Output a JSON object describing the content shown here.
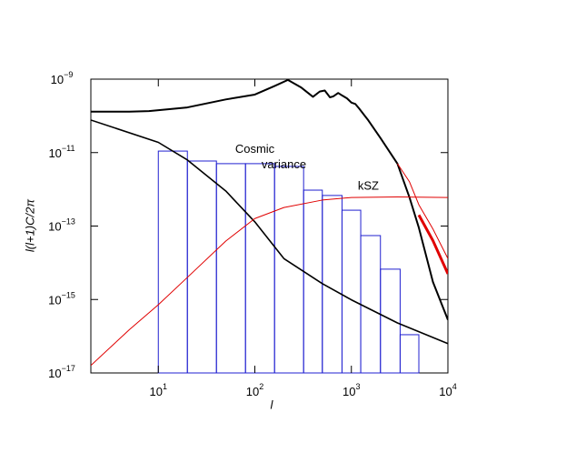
{
  "chart_data": {
    "type": "line",
    "xlabel": "l",
    "ylabel": "l(l+1)C/2π",
    "xlog": true,
    "ylog": true,
    "xlim": [
      2,
      10000
    ],
    "ylim": [
      1e-17,
      1e-09
    ],
    "xticks": [
      {
        "value": 10,
        "label": "101"
      },
      {
        "value": 100,
        "label": "102"
      },
      {
        "value": 1000,
        "label": "103"
      },
      {
        "value": 10000,
        "label": "104"
      }
    ],
    "yticks": [
      {
        "value": 1e-17,
        "label": "10−17"
      },
      {
        "value": 1e-15,
        "label": "10−15"
      },
      {
        "value": 1e-13,
        "label": "10−13"
      },
      {
        "value": 1e-11,
        "label": "10−11"
      },
      {
        "value": 1e-09,
        "label": "10−9"
      }
    ],
    "annotations": [
      {
        "text": "Cosmic",
        "x": 100,
        "y": 1.2e-11
      },
      {
        "text": "variance",
        "x": 200,
        "y": 4.5e-12
      },
      {
        "text": "kSZ",
        "x": 1500,
        "y": 1.2e-12
      }
    ],
    "series": [
      {
        "color": "#000000",
        "width": 2,
        "x": [
          2,
          5,
          8,
          20,
          50,
          100,
          160,
          220,
          300,
          400,
          470,
          530,
          600,
          650,
          730,
          800,
          900,
          1000,
          1100,
          1200,
          1500,
          2000,
          3000,
          4000,
          5000,
          7000,
          10000
        ],
        "values": [
          1.3e-10,
          1.3e-10,
          1.35e-10,
          1.7e-10,
          2.8e-10,
          3.8e-10,
          6.5e-10,
          9.5e-10,
          6e-10,
          3.3e-10,
          4.6e-10,
          4.9e-10,
          3.2e-10,
          3.4e-10,
          4.2e-10,
          3.6e-10,
          3e-10,
          2.3e-10,
          2.1e-10,
          1.6e-10,
          7.5e-11,
          2.5e-11,
          5e-12,
          6e-13,
          9e-14,
          3e-15,
          2.8e-16
        ]
      },
      {
        "color": "#000000",
        "width": 1.6,
        "x": [
          2,
          10,
          20,
          50,
          100,
          200,
          500,
          1000,
          3000,
          10000
        ],
        "values": [
          7.7e-11,
          1.9e-11,
          6.3e-12,
          9e-13,
          1.3e-13,
          1.3e-14,
          2.7e-15,
          9.8e-16,
          2.3e-16,
          6.3e-17
        ]
      },
      {
        "color": "#e00000",
        "width": 1,
        "x": [
          2,
          5,
          10,
          20,
          50,
          100,
          200,
          500,
          1000,
          3000,
          10000
        ],
        "values": [
          1.6e-17,
          1.5e-16,
          7.2e-16,
          4e-15,
          3.9e-14,
          1.6e-13,
          3.2e-13,
          5.1e-13,
          6e-13,
          6.2e-13,
          6e-13
        ]
      },
      {
        "color": "#e00000",
        "width": 1,
        "x": [
          3000,
          4000,
          5000,
          7000,
          10000
        ],
        "values": [
          5e-12,
          1.6e-12,
          3.8e-13,
          8.3e-14,
          1.3e-14
        ]
      },
      {
        "color": "#e00000",
        "width": 3,
        "x": [
          5000,
          7000,
          10000
        ],
        "values": [
          2e-13,
          4e-14,
          5e-15
        ]
      }
    ],
    "histogram": {
      "color": "#2020d0",
      "bins": [
        10,
        20,
        40,
        80,
        160,
        320,
        500,
        800,
        1250,
        2000,
        3200,
        5000
      ],
      "values": [
        1.1e-11,
        5.9e-12,
        5e-12,
        5e-12,
        4.2e-12,
        9.5e-13,
        6.8e-13,
        2.7e-13,
        5.5e-14,
        6.7e-15,
        1.1e-16
      ]
    }
  }
}
